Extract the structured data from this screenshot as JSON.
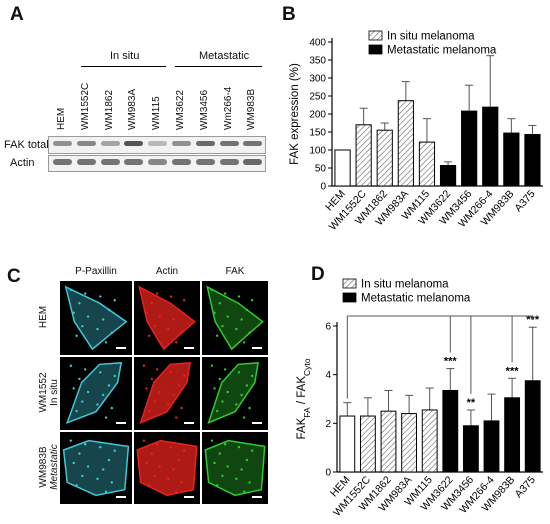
{
  "panels": {
    "a": "A",
    "b": "B",
    "c": "C",
    "d": "D"
  },
  "panel_a": {
    "group_in_situ": "In situ",
    "group_metastatic": "Metastatic",
    "lanes": [
      "HEM",
      "WM1552C",
      "WM1862",
      "WM983A",
      "WM115",
      "WM3622",
      "WM3456",
      "Wm266-4",
      "WM983B"
    ],
    "rows": [
      "FAK total",
      "Actin"
    ],
    "band_intensity": {
      "FAK total": [
        0.55,
        0.6,
        0.45,
        0.85,
        0.35,
        0.55,
        0.75,
        0.7,
        0.7
      ],
      "Actin": [
        0.7,
        0.7,
        0.7,
        0.7,
        0.6,
        0.7,
        0.7,
        0.7,
        0.75
      ]
    }
  },
  "panel_c": {
    "columns": [
      "P-Paxillin",
      "Actin",
      "FAK"
    ],
    "rows": [
      {
        "line1": "HEM",
        "line2": ""
      },
      {
        "line1": "WM1552",
        "line2": "In situ"
      },
      {
        "line1": "WM983B",
        "line2": "Metastatic"
      }
    ],
    "channel_colors": [
      "#3ec8d8",
      "#e8231c",
      "#2ecc2e"
    ]
  },
  "chart_data": [
    {
      "type": "bar",
      "panel": "B",
      "categories": [
        "HEM",
        "WM1552C",
        "WM1862",
        "WM983A",
        "WM115",
        "WM3622",
        "WM3456",
        "WM266-4",
        "WM983B",
        "A375"
      ],
      "values": [
        100,
        170,
        155,
        237,
        122,
        57,
        208,
        219,
        147,
        143
      ],
      "errors": [
        0,
        46,
        20,
        53,
        65,
        10,
        72,
        143,
        40,
        25
      ],
      "groups": [
        "control",
        "insitu",
        "insitu",
        "insitu",
        "insitu",
        "metastatic",
        "metastatic",
        "metastatic",
        "metastatic",
        "metastatic"
      ],
      "legend": [
        "In situ melanoma",
        "Metastatic melanoma"
      ],
      "ylabel": "FAK expression (%)",
      "ylim": [
        0,
        400
      ],
      "yticks": [
        0,
        50,
        100,
        150,
        200,
        250,
        300,
        350,
        400
      ],
      "legend_position": "top-left"
    },
    {
      "type": "bar",
      "panel": "D",
      "categories": [
        "HEM",
        "WM1552C",
        "WM1862",
        "WM983A",
        "WM115",
        "WM3622",
        "WM3456",
        "WM266-4",
        "WM983B",
        "A375"
      ],
      "values": [
        2.3,
        2.3,
        2.5,
        2.4,
        2.55,
        3.35,
        1.9,
        2.1,
        3.05,
        3.75
      ],
      "errors": [
        0.55,
        0.75,
        0.85,
        0.75,
        0.9,
        0.9,
        0.65,
        1.1,
        0.8,
        2.2
      ],
      "groups": [
        "control",
        "insitu",
        "insitu",
        "insitu",
        "insitu",
        "metastatic",
        "metastatic",
        "metastatic",
        "metastatic",
        "metastatic"
      ],
      "significance": [
        "",
        "",
        "",
        "",
        "",
        "***",
        "**",
        "",
        "***",
        "***"
      ],
      "legend": [
        "In situ melanoma",
        "Metastatic melanoma"
      ],
      "ylabel_main": "FAK",
      "ylabel_sub1": "FA",
      "ylabel_sep": " / FAK",
      "ylabel_sub2": "Cyto",
      "ylim": [
        0,
        6
      ],
      "yticks": [
        0,
        2,
        4,
        6
      ],
      "legend_position": "top-left"
    }
  ]
}
